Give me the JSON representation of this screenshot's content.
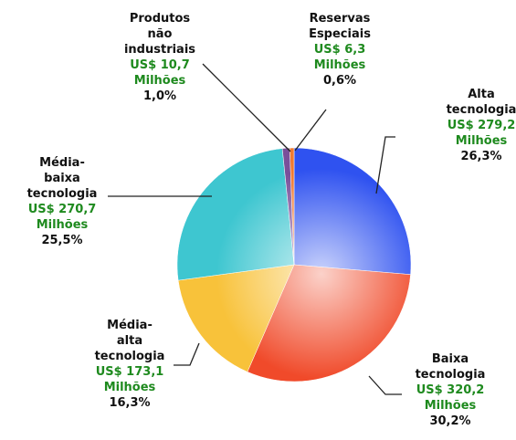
{
  "chart_data": {
    "type": "pie",
    "categories": [
      "Alta tecnologia",
      "Baixa tecnologia",
      "Média-alta tecnologia",
      "Média-baixa tecnologia",
      "Produtos não industriais",
      "Reservas Especiais"
    ],
    "values": [
      279.2,
      320.2,
      173.1,
      270.7,
      10.7,
      6.3
    ],
    "value_labels": [
      "US$ 279,2",
      "US$ 320,2",
      "US$ 173,1",
      "US$ 270,7",
      "US$ 10,7",
      "US$ 6,3"
    ],
    "unit": "Milhões",
    "percentages": [
      26.3,
      30.2,
      16.3,
      25.5,
      1.0,
      0.6
    ],
    "percentage_labels": [
      "26,3%",
      "30,2%",
      "16,3%",
      "25,5%",
      "1,0%",
      "0,6%"
    ],
    "colors": [
      "#2f52f0",
      "#f04a2a",
      "#f8c23a",
      "#3ec6d0",
      "#7a4f9a",
      "#f07a30"
    ]
  }
}
